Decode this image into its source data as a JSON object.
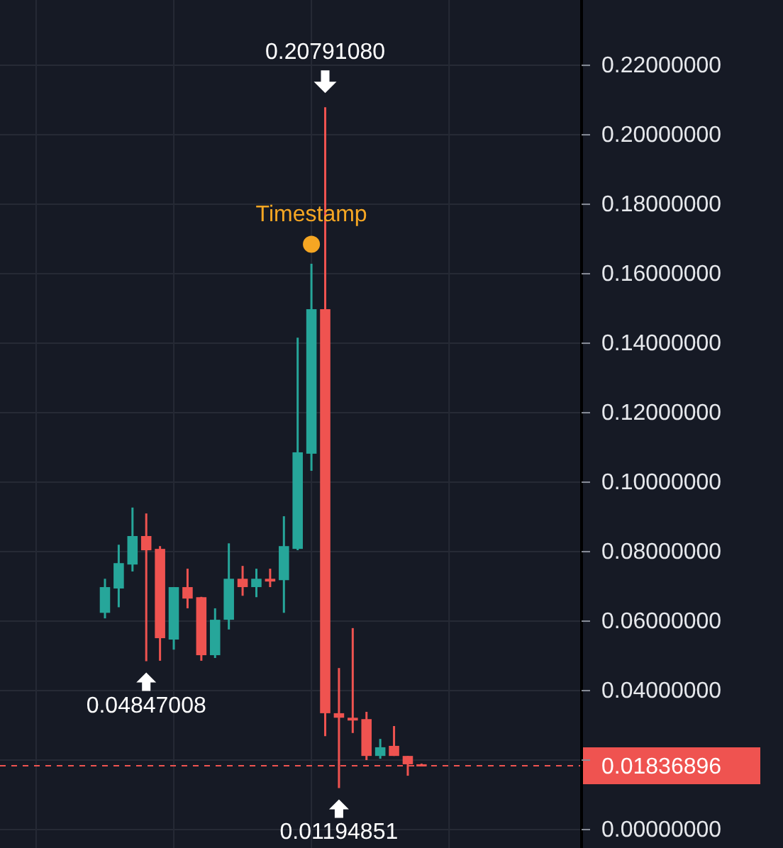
{
  "chart_data": {
    "type": "candlestick",
    "categories": [
      null,
      null,
      null,
      null,
      null,
      null,
      null,
      null,
      null,
      null,
      null,
      null,
      null,
      null,
      null,
      null,
      null,
      null,
      null,
      null,
      null,
      null,
      null,
      null,
      null,
      null,
      null,
      null,
      null,
      null,
      null,
      null,
      null,
      null,
      null,
      null,
      null,
      null,
      null,
      null,
      null,
      null
    ],
    "ohlc": [
      null,
      null,
      null,
      null,
      null,
      null,
      null,
      [
        0.0624,
        0.0722,
        0.0608,
        0.0698
      ],
      [
        0.0694,
        0.082,
        0.064,
        0.0767
      ],
      [
        0.0763,
        0.0927,
        0.0743,
        0.0845
      ],
      [
        0.0845,
        0.091,
        0.04847008,
        0.0804
      ],
      [
        0.0808,
        0.0816,
        0.0486,
        0.0551
      ],
      [
        0.0547,
        0.0698,
        0.0518,
        0.0698
      ],
      [
        0.0698,
        0.0751,
        0.0637,
        0.0665
      ],
      [
        0.0669,
        0.067,
        0.0486,
        0.0502
      ],
      [
        0.0502,
        0.0637,
        0.0494,
        0.0604
      ],
      [
        0.0604,
        0.0824,
        0.0576,
        0.0722
      ],
      [
        0.0722,
        0.0759,
        0.0673,
        0.0698
      ],
      [
        0.0698,
        0.0751,
        0.0669,
        0.0722
      ],
      [
        0.0722,
        0.0751,
        0.0698,
        0.0714
      ],
      [
        0.0718,
        0.0902,
        0.0624,
        0.0816
      ],
      [
        0.0808,
        0.1416,
        0.0804,
        0.1086
      ],
      [
        0.1082,
        0.1629,
        0.1033,
        0.1498
      ],
      [
        0.1498,
        0.2079108,
        0.0269,
        0.0335
      ],
      [
        0.0335,
        0.0465,
        0.01194851,
        0.0322
      ],
      [
        0.0322,
        0.058,
        0.0278,
        0.0314
      ],
      [
        0.0318,
        0.0339,
        0.02,
        0.0212
      ],
      [
        0.0212,
        0.0261,
        0.0204,
        0.0237
      ],
      [
        0.0241,
        0.0298,
        0.0212,
        0.0212
      ],
      [
        0.0212,
        0.0212,
        0.0155,
        0.0188
      ],
      [
        0.0188,
        0.019,
        0.0183,
        0.01836896
      ],
      null,
      null,
      null,
      null,
      null,
      null,
      null,
      null,
      null,
      null,
      null
    ],
    "colors": [
      null,
      null,
      null,
      null,
      null,
      null,
      null,
      "#26a69a",
      "#26a69a",
      "#26a69a",
      "#ef5350",
      "#ef5350",
      "#26a69a",
      "#ef5350",
      "#ef5350",
      "#26a69a",
      "#26a69a",
      "#ef5350",
      "#26a69a",
      "#ef5350",
      "#26a69a",
      "#26a69a",
      "#26a69a",
      "#ef5350",
      "#ef5350",
      "#ef5350",
      "#ef5350",
      "#26a69a",
      "#ef5350",
      "#ef5350",
      "#ef5350",
      null,
      null,
      null,
      null,
      null,
      null,
      null,
      null,
      null,
      null,
      null
    ],
    "ylim": [
      -0.0053,
      0.2388
    ],
    "yticks": [
      {
        "value": 0,
        "label": "0.00000000"
      },
      {
        "value": 0.02,
        "label": null
      },
      {
        "value": 0.04,
        "label": "0.04000000"
      },
      {
        "value": 0.06,
        "label": "0.06000000"
      },
      {
        "value": 0.08,
        "label": "0.08000000"
      },
      {
        "value": 0.1,
        "label": "0.10000000"
      },
      {
        "value": 0.12,
        "label": "0.12000000"
      },
      {
        "value": 0.14,
        "label": "0.14000000"
      },
      {
        "value": 0.16,
        "label": "0.16000000"
      },
      {
        "value": 0.18,
        "label": "0.18000000"
      },
      {
        "value": 0.2,
        "label": "0.20000000"
      },
      {
        "value": 0.22,
        "label": "0.22000000"
      }
    ],
    "tick_labels": "y",
    "grid": true,
    "ref_lines": [
      {
        "axis": "y",
        "value": 0.01836896,
        "label": "0.01836896",
        "color": "#ef5350",
        "line_style": "dashed"
      }
    ],
    "annotations": [
      {
        "text": "0.20791080",
        "y": 0.2079108
      },
      {
        "text": "0.04847008",
        "y": 0.04847008
      },
      {
        "text": "0.01194851",
        "y": 0.01194851
      },
      {
        "text": "Timestamp",
        "y": 0.1685
      }
    ]
  }
}
